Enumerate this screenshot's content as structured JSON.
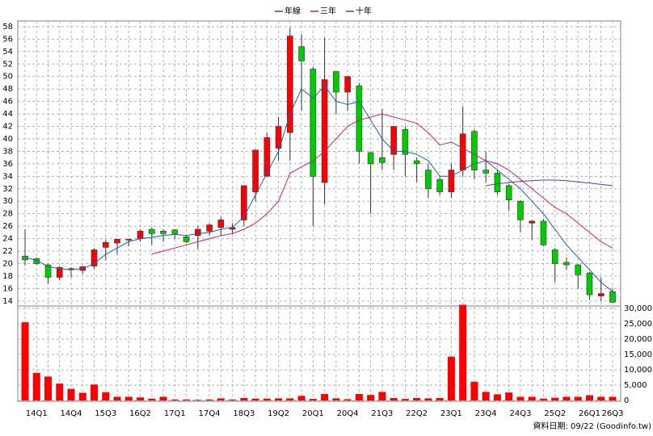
{
  "chart_data": {
    "type": "candlestick",
    "categories": [
      null,
      "14Q1",
      null,
      null,
      "14Q4",
      null,
      null,
      "15Q3",
      null,
      null,
      "16Q2",
      null,
      null,
      "17Q1",
      null,
      null,
      "17Q4",
      null,
      null,
      "18Q3",
      null,
      null,
      "19Q2",
      null,
      null,
      "20Q1",
      null,
      null,
      "20Q4",
      null,
      null,
      "21Q3",
      null,
      null,
      "22Q2",
      null,
      null,
      "23Q1",
      null,
      null,
      "23Q4",
      null,
      null,
      "24Q3",
      null,
      null,
      "25Q2",
      null,
      null,
      "26Q1",
      null,
      "26Q3"
    ],
    "open": [
      21.2,
      20.8,
      19.8,
      17.8,
      19.0,
      18.9,
      19.6,
      22.6,
      23.3,
      23.8,
      24.0,
      25.5,
      25.2,
      25.4,
      24.3,
      24.5,
      25.2,
      25.8,
      25.5,
      27.0,
      31.5,
      34.0,
      38.5,
      41.0,
      54.8,
      51.2,
      33.0,
      50.8,
      47.5,
      48.5,
      37.8,
      37.0,
      37.5,
      41.5,
      36.5,
      35.0,
      33.5,
      31.5,
      35.0,
      41.2,
      35.0,
      34.5,
      32.5,
      30.0,
      26.5,
      26.8,
      22.2,
      20.2,
      19.8,
      18.5,
      14.8,
      15.5
    ],
    "high": [
      25.5,
      21.0,
      20.0,
      19.6,
      19.4,
      19.6,
      22.5,
      23.8,
      24.0,
      24.0,
      25.5,
      25.8,
      25.5,
      25.5,
      24.5,
      26.0,
      26.5,
      27.5,
      26.5,
      32.5,
      38.3,
      41.0,
      43.5,
      57.8,
      56.8,
      51.5,
      56.2,
      50.8,
      50.0,
      49.0,
      38.0,
      44.8,
      42.0,
      42.0,
      37.0,
      36.0,
      34.0,
      36.0,
      45.2,
      41.5,
      38.0,
      35.0,
      32.8,
      30.2,
      27.0,
      27.2,
      22.5,
      21.0,
      19.9,
      18.7,
      17.8,
      16.0
    ],
    "low": [
      19.7,
      19.8,
      16.8,
      17.3,
      17.8,
      18.4,
      19.2,
      20.5,
      21.5,
      22.8,
      23.5,
      23.0,
      23.5,
      24.0,
      23.3,
      22.3,
      24.5,
      24.5,
      24.8,
      26.0,
      30.0,
      34.0,
      36.5,
      36.5,
      44.5,
      26.0,
      29.5,
      44.0,
      44.5,
      36.0,
      28.0,
      35.0,
      35.0,
      34.0,
      33.0,
      30.5,
      31.0,
      30.5,
      34.0,
      33.5,
      33.0,
      31.0,
      28.5,
      25.0,
      23.8,
      22.8,
      17.0,
      19.0,
      16.0,
      14.2,
      14.0,
      13.8
    ],
    "close": [
      20.6,
      20.0,
      17.8,
      19.4,
      19.2,
      19.5,
      22.2,
      23.4,
      23.9,
      23.9,
      25.2,
      24.8,
      24.8,
      24.8,
      23.5,
      25.5,
      26.2,
      27.0,
      25.8,
      32.5,
      38.2,
      40.2,
      42.0,
      56.5,
      52.5,
      34.0,
      49.5,
      47.5,
      50.0,
      38.0,
      36.0,
      36.2,
      42.0,
      37.5,
      36.0,
      32.0,
      31.5,
      35.0,
      40.8,
      35.0,
      34.5,
      31.5,
      30.2,
      27.0,
      26.8,
      23.0,
      20.0,
      19.8,
      18.2,
      15.0,
      15.2,
      13.8
    ],
    "up_color": "#ff0000",
    "down_color": "#00cc00",
    "series": [
      {
        "name": "年線",
        "color": "#1a5fb4",
        "values": [
          21,
          20.5,
          19.5,
          19.2,
          19,
          19.2,
          20,
          21.5,
          22.5,
          23.5,
          24,
          24.2,
          24.5,
          24.7,
          24.5,
          24.8,
          25,
          25.5,
          25.8,
          27.5,
          31,
          34.5,
          38,
          44,
          48,
          46.5,
          48.5,
          46,
          45.5,
          46,
          43,
          40,
          38,
          38,
          37.5,
          36.5,
          34,
          34,
          35,
          36,
          36.5,
          35,
          33.5,
          32,
          30,
          28,
          25.5,
          23,
          21,
          19,
          17,
          15.5
        ]
      },
      {
        "name": "三年",
        "color": "#d0206a",
        "values": [
          null,
          null,
          null,
          null,
          null,
          null,
          null,
          null,
          null,
          null,
          null,
          21.5,
          22,
          22.5,
          23,
          23.5,
          24,
          24.5,
          24.8,
          25.5,
          26.5,
          28,
          30,
          34.5,
          35.5,
          36.5,
          38,
          40,
          42,
          43,
          43.5,
          44,
          43.5,
          43,
          42.5,
          41,
          39,
          39.5,
          38.5,
          37.5,
          36.5,
          36,
          35,
          33.5,
          32,
          30.5,
          29,
          28,
          26.5,
          25,
          23.5,
          22.5
        ]
      },
      {
        "name": "十年",
        "color": "#7030a0",
        "values": [
          null,
          null,
          null,
          null,
          null,
          null,
          null,
          null,
          null,
          null,
          null,
          null,
          null,
          null,
          null,
          null,
          null,
          null,
          null,
          null,
          null,
          null,
          null,
          null,
          null,
          null,
          null,
          null,
          null,
          null,
          null,
          null,
          null,
          null,
          null,
          null,
          null,
          null,
          null,
          null,
          32.5,
          32.8,
          33,
          33.2,
          33.3,
          33.4,
          33.4,
          33.3,
          33.1,
          32.9,
          32.7,
          32.5
        ]
      }
    ],
    "ylim": [
      13.2,
      58.9
    ],
    "yticks": [
      14,
      16,
      18,
      20,
      22,
      24,
      26,
      28,
      30,
      32,
      34,
      36,
      38,
      40,
      42,
      44,
      46,
      48,
      50,
      52,
      54,
      56,
      58
    ],
    "grid": true,
    "volume": {
      "color": "#ff0000",
      "values": [
        25500,
        9000,
        7800,
        5500,
        3800,
        2500,
        5200,
        2700,
        1200,
        1200,
        1000,
        600,
        1200,
        300,
        300,
        200,
        300,
        700,
        300,
        800,
        600,
        600,
        700,
        700,
        1500,
        500,
        2100,
        700,
        400,
        2100,
        1800,
        2800,
        800,
        500,
        800,
        700,
        800,
        14300,
        31200,
        6100,
        2800,
        2000,
        2600,
        1200,
        1200,
        600,
        900,
        1200,
        1200,
        1700,
        1200,
        1200
      ],
      "ylim": [
        0,
        30800
      ],
      "yticks": [
        0,
        {
          "value": 5000,
          "label": "5,000"
        },
        {
          "value": 10000,
          "label": "10,000"
        },
        {
          "value": 15000,
          "label": "15,000"
        },
        {
          "value": 20000,
          "label": "20,000"
        },
        {
          "value": 25000,
          "label": "25,000"
        },
        {
          "value": 30000,
          "label": "30,000"
        }
      ]
    },
    "source": "資料日期: 09/22 (Goodinfo.tw)"
  }
}
